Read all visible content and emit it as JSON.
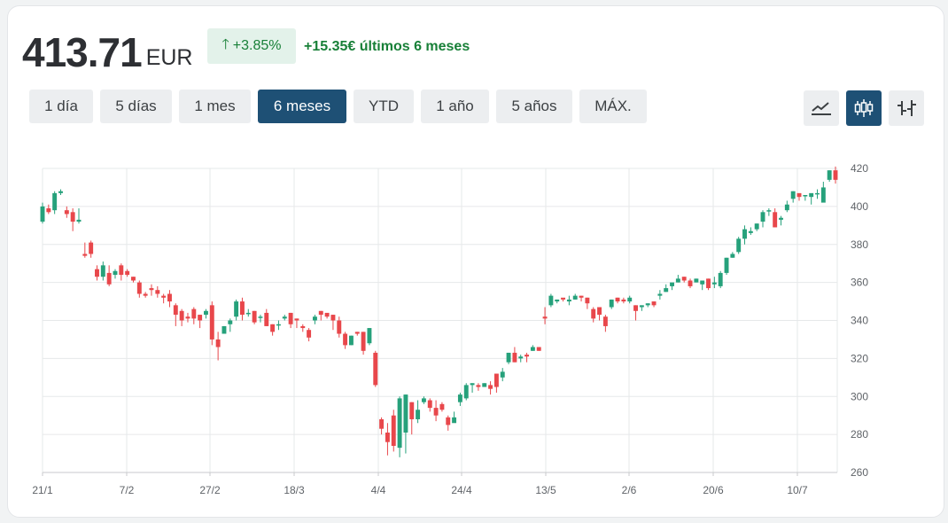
{
  "header": {
    "price": "413.71",
    "currency": "EUR",
    "change_percent": "+3.85%",
    "change_amount_text": "+15.35€ últimos 6 meses",
    "up_color": "#188038"
  },
  "range_buttons": [
    {
      "label": "1 día",
      "active": false
    },
    {
      "label": "5 días",
      "active": false
    },
    {
      "label": "1 mes",
      "active": false
    },
    {
      "label": "6 meses",
      "active": true
    },
    {
      "label": "YTD",
      "active": false
    },
    {
      "label": "1 año",
      "active": false
    },
    {
      "label": "5 años",
      "active": false
    },
    {
      "label": "MÁX.",
      "active": false
    }
  ],
  "chart_types": [
    {
      "icon": "line-chart-icon",
      "active": false
    },
    {
      "icon": "candlestick-icon",
      "active": true
    },
    {
      "icon": "ohlc-bar-icon",
      "active": false
    }
  ],
  "colors": {
    "up": "#26a17b",
    "down": "#e8474b",
    "accent": "#1e5075"
  },
  "chart_data": {
    "type": "candlestick",
    "xlabels": [
      "21/1",
      "7/2",
      "27/2",
      "18/3",
      "4/4",
      "24/4",
      "13/5",
      "2/6",
      "20/6",
      "10/7"
    ],
    "yticks": [
      420,
      400,
      380,
      360,
      340,
      320,
      300,
      280,
      260
    ],
    "ylim": [
      260,
      420
    ],
    "grid": true,
    "candles": [
      [
        392,
        400,
        391,
        402
      ],
      [
        399,
        397,
        396,
        401
      ],
      [
        398,
        407,
        396,
        408
      ],
      [
        407,
        408,
        406,
        409
      ],
      [
        398,
        396,
        394,
        400
      ],
      [
        397,
        392,
        387,
        399
      ],
      [
        392,
        393,
        391,
        399
      ],
      [
        375,
        374,
        373,
        381
      ],
      [
        381,
        375,
        373,
        382
      ],
      [
        367,
        363,
        361,
        369
      ],
      [
        363,
        369,
        361,
        371
      ],
      [
        365,
        359,
        358,
        369
      ],
      [
        364,
        366,
        362,
        367
      ],
      [
        369,
        364,
        361,
        370
      ],
      [
        366,
        364,
        363,
        367
      ],
      [
        363,
        361,
        360,
        363
      ],
      [
        360,
        354,
        352,
        361
      ],
      [
        354,
        353,
        352,
        355
      ],
      [
        357,
        356,
        353,
        359
      ],
      [
        356,
        354,
        352,
        358
      ],
      [
        353,
        352,
        349,
        354
      ],
      [
        354,
        350,
        347,
        356
      ],
      [
        348,
        343,
        337,
        349
      ],
      [
        345,
        340,
        337,
        346
      ],
      [
        342,
        341,
        339,
        344
      ],
      [
        346,
        341,
        338,
        347
      ],
      [
        343,
        340,
        336,
        343
      ],
      [
        343,
        345,
        341,
        346
      ],
      [
        348,
        330,
        327,
        350
      ],
      [
        330,
        326,
        319,
        334
      ],
      [
        333,
        337,
        334,
        337
      ],
      [
        338,
        340,
        334,
        341
      ],
      [
        342,
        350,
        340,
        351
      ],
      [
        350,
        343,
        340,
        352
      ],
      [
        344,
        344,
        342,
        346
      ],
      [
        345,
        339,
        338,
        345
      ],
      [
        342,
        342,
        339,
        343
      ],
      [
        344,
        337,
        337,
        346
      ],
      [
        338,
        334,
        332,
        338
      ],
      [
        338,
        338,
        335,
        340
      ],
      [
        341,
        342,
        340,
        343
      ],
      [
        344,
        338,
        336,
        344
      ],
      [
        341,
        340,
        336,
        341
      ],
      [
        337,
        336,
        334,
        338
      ],
      [
        335,
        331,
        329,
        336
      ],
      [
        340,
        342,
        338,
        343
      ],
      [
        345,
        343,
        340,
        345
      ],
      [
        344,
        342,
        341,
        343
      ],
      [
        343,
        340,
        335,
        343
      ],
      [
        340,
        333,
        331,
        342
      ],
      [
        333,
        327,
        325,
        334
      ],
      [
        327,
        332,
        327,
        332
      ],
      [
        334,
        333,
        332,
        334
      ],
      [
        334,
        324,
        322,
        334
      ],
      [
        328,
        336,
        327,
        336
      ],
      [
        323,
        306,
        305,
        324
      ],
      [
        288,
        283,
        280,
        289
      ],
      [
        281,
        276,
        269,
        286
      ],
      [
        290,
        274,
        271,
        293
      ],
      [
        273,
        299,
        268,
        300
      ],
      [
        281,
        301,
        270,
        301
      ],
      [
        297,
        288,
        280,
        297
      ],
      [
        288,
        293,
        286,
        298
      ],
      [
        297,
        299,
        296,
        300
      ],
      [
        298,
        294,
        292,
        299
      ],
      [
        294,
        290,
        287,
        298
      ],
      [
        296,
        293,
        292,
        297
      ],
      [
        289,
        285,
        282,
        290
      ],
      [
        286,
        289,
        287,
        292
      ],
      [
        297,
        301,
        295,
        302
      ],
      [
        299,
        306,
        298,
        307
      ],
      [
        306,
        307,
        302,
        307
      ],
      [
        306,
        305,
        303,
        307
      ],
      [
        305,
        307,
        305,
        307
      ],
      [
        306,
        304,
        301,
        308
      ],
      [
        312,
        305,
        302,
        312
      ],
      [
        310,
        313,
        308,
        315
      ],
      [
        318,
        323,
        317,
        323
      ],
      [
        323,
        318,
        318,
        326
      ],
      [
        320,
        321,
        318,
        322
      ],
      [
        322,
        321,
        318,
        323
      ],
      [
        324,
        326,
        324,
        327
      ],
      [
        326,
        324,
        324,
        326
      ],
      [
        342,
        341,
        338,
        347
      ],
      [
        348,
        353,
        347,
        354
      ],
      [
        350,
        351,
        349,
        351
      ],
      [
        352,
        351,
        350,
        351
      ],
      [
        350,
        351,
        348,
        353
      ],
      [
        351,
        353,
        351,
        354
      ],
      [
        353,
        352,
        350,
        353
      ],
      [
        352,
        349,
        346,
        352
      ],
      [
        346,
        341,
        339,
        347
      ],
      [
        347,
        343,
        340,
        346
      ],
      [
        342,
        337,
        334,
        343
      ],
      [
        347,
        351,
        346,
        351
      ],
      [
        352,
        350,
        349,
        352
      ],
      [
        351,
        350,
        349,
        352
      ],
      [
        350,
        352,
        349,
        353
      ],
      [
        348,
        345,
        340,
        348
      ],
      [
        347,
        348,
        345,
        348
      ],
      [
        348,
        349,
        347,
        349
      ],
      [
        350,
        348,
        347,
        350
      ],
      [
        353,
        354,
        351,
        356
      ],
      [
        355,
        357,
        355,
        359
      ],
      [
        358,
        360,
        356,
        359
      ],
      [
        360,
        362,
        360,
        364
      ],
      [
        363,
        361,
        360,
        363
      ],
      [
        361,
        358,
        357,
        362
      ],
      [
        360,
        362,
        360,
        362
      ],
      [
        359,
        361,
        356,
        361
      ],
      [
        362,
        357,
        356,
        362
      ],
      [
        359,
        360,
        357,
        363
      ],
      [
        358,
        365,
        357,
        366
      ],
      [
        365,
        373,
        364,
        373
      ],
      [
        373,
        375,
        373,
        376
      ],
      [
        376,
        383,
        375,
        384
      ],
      [
        383,
        388,
        380,
        390
      ],
      [
        386,
        387,
        385,
        389
      ],
      [
        388,
        391,
        387,
        391
      ],
      [
        392,
        397,
        389,
        398
      ],
      [
        398,
        398,
        395,
        399
      ],
      [
        397,
        389,
        389,
        399
      ],
      [
        393,
        394,
        390,
        395
      ],
      [
        398,
        401,
        397,
        403
      ],
      [
        404,
        408,
        402,
        408
      ],
      [
        407,
        405,
        403,
        406
      ],
      [
        406,
        406,
        403,
        406
      ],
      [
        405,
        407,
        401,
        406
      ],
      [
        407,
        407,
        404,
        409
      ],
      [
        402,
        410,
        403,
        413
      ],
      [
        414,
        419,
        413,
        419
      ],
      [
        419,
        414,
        412,
        421
      ]
    ]
  }
}
